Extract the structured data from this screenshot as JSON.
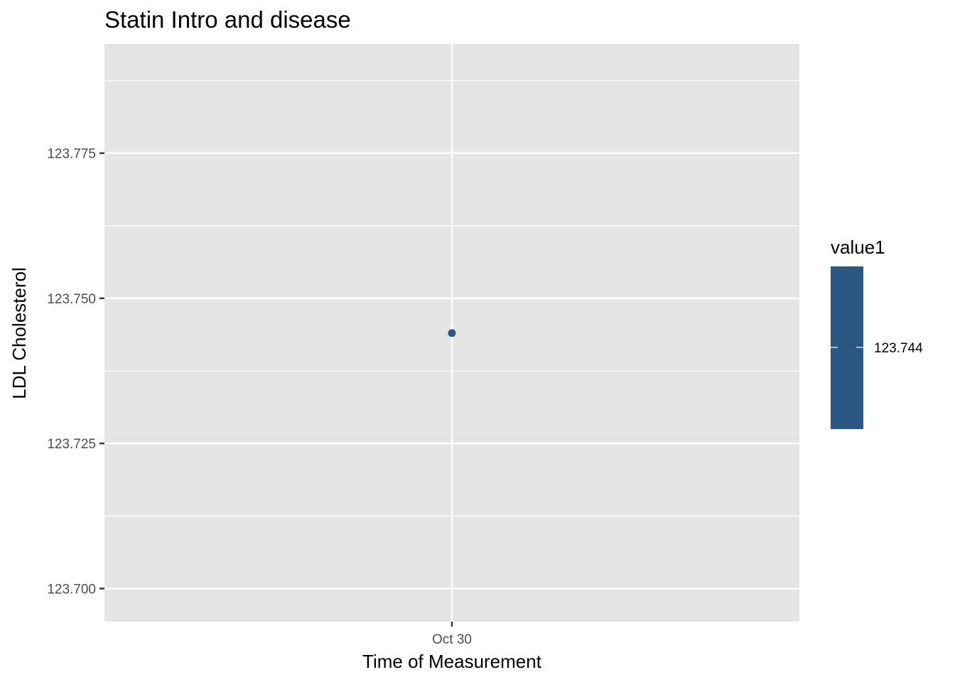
{
  "chart_data": {
    "type": "scatter",
    "title": "Statin Intro and disease",
    "xlabel": "Time of Measurement",
    "ylabel": "LDL Cholesterol",
    "x_ticks": [
      "Oct 30"
    ],
    "y_ticks": [
      123.7,
      123.725,
      123.75,
      123.775
    ],
    "y_tick_labels": [
      "123.700",
      "123.725",
      "123.750",
      "123.775"
    ],
    "ylim": [
      123.6943,
      123.7938
    ],
    "grid": true,
    "points": [
      {
        "x": "Oct 30",
        "y": 123.744,
        "value1": 123.744
      }
    ],
    "legend": {
      "title": "value1",
      "placement": "right",
      "labels": [
        "123.744"
      ],
      "color": "#2a5783"
    },
    "colors": {
      "panel": "#e5e5e5",
      "grid": "#ffffff",
      "point": "#2a5783"
    }
  }
}
